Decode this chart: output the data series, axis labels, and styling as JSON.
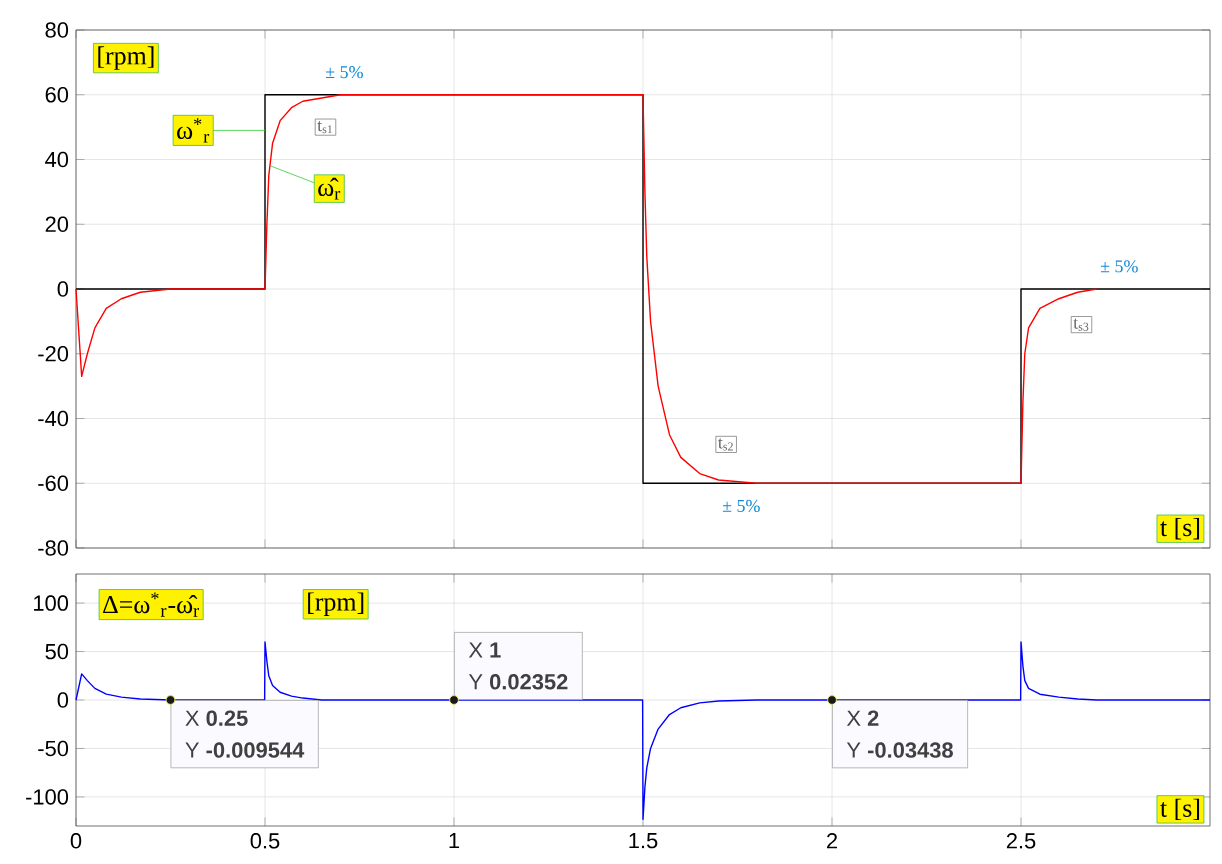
{
  "chart_data": [
    {
      "type": "line",
      "xlim": [
        0,
        3
      ],
      "xticks": [
        0,
        0.5,
        1,
        1.5,
        2,
        2.5
      ],
      "ylim": [
        -80,
        80
      ],
      "yticks": [
        -80,
        -60,
        -40,
        -20,
        0,
        20,
        40,
        60,
        80
      ],
      "tick_labels": "y",
      "grid": true,
      "xlabel": "t [s]",
      "series": [
        {
          "name": "ω$^{*}$$_{r}$",
          "color": "#000000",
          "x": [
            0,
            0.5,
            0.5,
            1.5,
            1.5,
            2.5,
            2.5,
            3
          ],
          "values": [
            0,
            0,
            60,
            60,
            -60,
            -60,
            0,
            0
          ]
        },
        {
          "name": "ω̂$_{r}$",
          "color": "#ff0000",
          "x": [
            0,
            0.015,
            0.03,
            0.05,
            0.08,
            0.12,
            0.17,
            0.25,
            0.5,
            0.505,
            0.51,
            0.52,
            0.54,
            0.57,
            0.6,
            0.65,
            0.7,
            1.5,
            1.505,
            1.51,
            1.52,
            1.54,
            1.57,
            1.6,
            1.65,
            1.7,
            1.8,
            2.5,
            2.505,
            2.51,
            2.52,
            2.55,
            2.6,
            2.65,
            2.7
          ],
          "values": [
            0,
            -27,
            -20,
            -12,
            -6,
            -3,
            -1,
            0,
            0,
            20,
            35,
            45,
            52,
            56,
            58,
            59,
            60,
            60,
            30,
            10,
            -10,
            -30,
            -45,
            -52,
            -57,
            -59,
            -60,
            -60,
            -35,
            -20,
            -12,
            -6,
            -3,
            -1,
            0
          ]
        }
      ],
      "annotations": [
        "[rpm]",
        {
          "text": "t$_{s1}$",
          "x": 0.66,
          "y": 50
        },
        "± 5%",
        {
          "text": "t$_{s2}$",
          "x": 1.72,
          "y": -48
        },
        "± 5%",
        {
          "text": "t$_{s3}$",
          "x": 2.66,
          "y": -11
        },
        "± 5%"
      ]
    },
    {
      "type": "line",
      "xlim": [
        0,
        3
      ],
      "xticks": [
        0,
        0.5,
        1,
        1.5,
        2,
        2.5
      ],
      "ylim": [
        -130,
        130
      ],
      "yticks": [
        -100,
        -50,
        0,
        50,
        100
      ],
      "grid": true,
      "xlabel": "t [s]",
      "series": [
        {
          "color": "#0000ff",
          "x": [
            0,
            0.015,
            0.03,
            0.05,
            0.08,
            0.12,
            0.17,
            0.25,
            0.499,
            0.5,
            0.505,
            0.51,
            0.52,
            0.54,
            0.57,
            0.6,
            0.65,
            0.7,
            0.8,
            1,
            1.499,
            1.5,
            1.505,
            1.51,
            1.52,
            1.54,
            1.57,
            1.6,
            1.65,
            1.7,
            1.8,
            2,
            2.499,
            2.5,
            2.505,
            2.51,
            2.52,
            2.55,
            2.6,
            2.65,
            2.7,
            3
          ],
          "values": [
            0,
            27,
            20,
            12,
            6,
            3,
            1,
            0,
            0,
            60,
            40,
            25,
            15,
            8,
            4,
            2,
            0,
            0,
            0,
            0,
            0,
            -123,
            -90,
            -70,
            -50,
            -30,
            -15,
            -8,
            -3,
            -1,
            0,
            0,
            0,
            60,
            35,
            20,
            12,
            6,
            3,
            1,
            0,
            0
          ]
        },
        {
          "type": "scatter",
          "color": "#1a1a1a",
          "x": [
            0.25,
            1,
            2
          ],
          "values": [
            0,
            0,
            0
          ]
        }
      ],
      "annotations": [
        "Δ=ω$^{*}$$_{r}$-ω̂$_{r}$",
        "[rpm]",
        {
          "text": "X **0.25**",
          "x": 0.25,
          "y": -0.009544
        },
        "Y **-0.009544**",
        {
          "text": "X **1**",
          "x": 1,
          "y": 0.02352
        },
        "Y **0.02352**",
        {
          "text": "X **2**",
          "x": 2,
          "y": -0.03438
        },
        "Y **-0.03438**"
      ]
    }
  ]
}
